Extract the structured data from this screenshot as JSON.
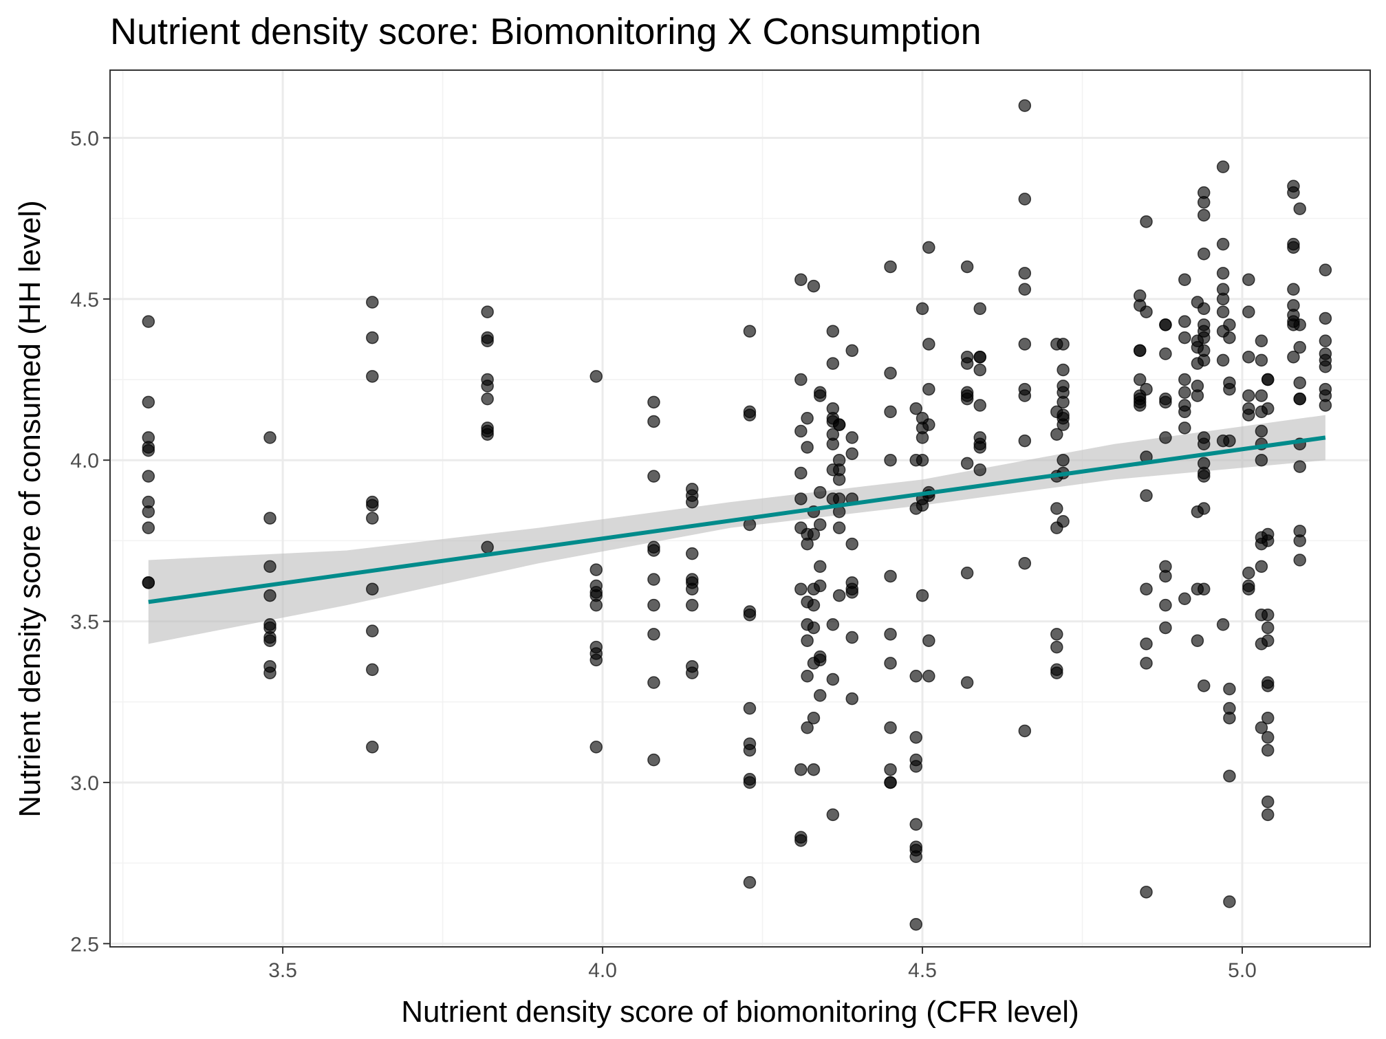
{
  "chart_data": {
    "type": "scatter",
    "title": "Nutrient density score: Biomonitoring X Consumption",
    "xlabel": "Nutrient density score of biomonitoring (CFR level)",
    "ylabel": "Nutrient density score of consumed (HH level)",
    "xlim": [
      3.23,
      5.2
    ],
    "ylim": [
      2.49,
      5.21
    ],
    "xticks": [
      3.5,
      4.0,
      4.5,
      5.0
    ],
    "xtick_labels": [
      "3.5",
      "4.0",
      "4.5",
      "5.0"
    ],
    "yticks": [
      2.5,
      3.0,
      3.5,
      4.0,
      4.5,
      5.0
    ],
    "ytick_labels": [
      "2.5",
      "3.0",
      "3.5",
      "4.0",
      "4.5",
      "5.0"
    ],
    "grid": true,
    "colors": {
      "points": "#000000",
      "trend_line": "#008b8b",
      "confidence_band": "#bfbfbf"
    },
    "trend_line": {
      "x": [
        3.29,
        5.13
      ],
      "y": [
        3.56,
        4.07
      ]
    },
    "confidence_band": {
      "x": [
        3.29,
        3.6,
        3.9,
        4.2,
        4.5,
        4.8,
        5.13
      ],
      "lower": [
        3.43,
        3.55,
        3.68,
        3.79,
        3.86,
        3.94,
        4.0
      ],
      "upper": [
        3.69,
        3.72,
        3.79,
        3.87,
        3.94,
        4.05,
        4.14
      ]
    },
    "points": [
      [
        3.29,
        4.43
      ],
      [
        3.29,
        4.18
      ],
      [
        3.29,
        4.07
      ],
      [
        3.29,
        4.04
      ],
      [
        3.29,
        4.03
      ],
      [
        3.29,
        3.95
      ],
      [
        3.29,
        3.87
      ],
      [
        3.29,
        3.84
      ],
      [
        3.29,
        3.79
      ],
      [
        3.29,
        3.62
      ],
      [
        3.29,
        3.62
      ],
      [
        3.48,
        4.07
      ],
      [
        3.48,
        3.82
      ],
      [
        3.48,
        3.67
      ],
      [
        3.48,
        3.58
      ],
      [
        3.48,
        3.49
      ],
      [
        3.48,
        3.48
      ],
      [
        3.48,
        3.45
      ],
      [
        3.48,
        3.44
      ],
      [
        3.48,
        3.36
      ],
      [
        3.48,
        3.34
      ],
      [
        3.64,
        4.49
      ],
      [
        3.64,
        4.38
      ],
      [
        3.64,
        4.26
      ],
      [
        3.64,
        3.87
      ],
      [
        3.64,
        3.86
      ],
      [
        3.64,
        3.82
      ],
      [
        3.64,
        3.6
      ],
      [
        3.64,
        3.47
      ],
      [
        3.64,
        3.35
      ],
      [
        3.64,
        3.11
      ],
      [
        3.82,
        4.46
      ],
      [
        3.82,
        4.38
      ],
      [
        3.82,
        4.37
      ],
      [
        3.82,
        4.25
      ],
      [
        3.82,
        4.23
      ],
      [
        3.82,
        4.19
      ],
      [
        3.82,
        4.1
      ],
      [
        3.82,
        4.09
      ],
      [
        3.82,
        4.08
      ],
      [
        3.82,
        3.73
      ],
      [
        3.99,
        4.26
      ],
      [
        3.99,
        3.66
      ],
      [
        3.99,
        3.61
      ],
      [
        3.99,
        3.59
      ],
      [
        3.99,
        3.58
      ],
      [
        3.99,
        3.55
      ],
      [
        3.99,
        3.42
      ],
      [
        3.99,
        3.4
      ],
      [
        3.99,
        3.38
      ],
      [
        3.99,
        3.11
      ],
      [
        4.08,
        4.18
      ],
      [
        4.08,
        4.12
      ],
      [
        4.08,
        3.95
      ],
      [
        4.08,
        3.73
      ],
      [
        4.08,
        3.72
      ],
      [
        4.08,
        3.63
      ],
      [
        4.08,
        3.55
      ],
      [
        4.08,
        3.46
      ],
      [
        4.08,
        3.31
      ],
      [
        4.08,
        3.07
      ],
      [
        4.14,
        3.91
      ],
      [
        4.14,
        3.89
      ],
      [
        4.14,
        3.87
      ],
      [
        4.14,
        3.71
      ],
      [
        4.14,
        3.63
      ],
      [
        4.14,
        3.62
      ],
      [
        4.14,
        3.6
      ],
      [
        4.14,
        3.55
      ],
      [
        4.14,
        3.36
      ],
      [
        4.14,
        3.34
      ],
      [
        4.23,
        4.4
      ],
      [
        4.23,
        4.15
      ],
      [
        4.23,
        4.14
      ],
      [
        4.23,
        3.8
      ],
      [
        4.23,
        3.53
      ],
      [
        4.23,
        3.52
      ],
      [
        4.23,
        3.23
      ],
      [
        4.23,
        3.12
      ],
      [
        4.23,
        3.1
      ],
      [
        4.23,
        3.01
      ],
      [
        4.23,
        3.0
      ],
      [
        4.23,
        2.69
      ],
      [
        4.31,
        4.56
      ],
      [
        4.31,
        4.25
      ],
      [
        4.31,
        4.09
      ],
      [
        4.31,
        3.96
      ],
      [
        4.31,
        3.88
      ],
      [
        4.31,
        3.79
      ],
      [
        4.31,
        3.6
      ],
      [
        4.31,
        3.04
      ],
      [
        4.31,
        2.83
      ],
      [
        4.31,
        2.82
      ],
      [
        4.32,
        4.13
      ],
      [
        4.32,
        4.04
      ],
      [
        4.32,
        3.77
      ],
      [
        4.32,
        3.74
      ],
      [
        4.32,
        3.56
      ],
      [
        4.32,
        3.49
      ],
      [
        4.32,
        3.44
      ],
      [
        4.32,
        3.33
      ],
      [
        4.32,
        3.17
      ],
      [
        4.33,
        4.54
      ],
      [
        4.33,
        3.84
      ],
      [
        4.33,
        3.77
      ],
      [
        4.33,
        3.6
      ],
      [
        4.33,
        3.55
      ],
      [
        4.33,
        3.48
      ],
      [
        4.33,
        3.37
      ],
      [
        4.33,
        3.2
      ],
      [
        4.33,
        3.04
      ],
      [
        4.34,
        4.21
      ],
      [
        4.34,
        4.2
      ],
      [
        4.34,
        3.9
      ],
      [
        4.34,
        3.8
      ],
      [
        4.34,
        3.67
      ],
      [
        4.34,
        3.61
      ],
      [
        4.34,
        3.39
      ],
      [
        4.34,
        3.38
      ],
      [
        4.34,
        3.27
      ],
      [
        4.36,
        4.4
      ],
      [
        4.36,
        4.3
      ],
      [
        4.36,
        4.16
      ],
      [
        4.36,
        4.13
      ],
      [
        4.36,
        4.12
      ],
      [
        4.36,
        4.08
      ],
      [
        4.36,
        4.05
      ],
      [
        4.36,
        3.97
      ],
      [
        4.36,
        3.88
      ],
      [
        4.36,
        3.49
      ],
      [
        4.36,
        3.32
      ],
      [
        4.36,
        2.9
      ],
      [
        4.37,
        4.11
      ],
      [
        4.37,
        4.11
      ],
      [
        4.37,
        4.0
      ],
      [
        4.37,
        3.97
      ],
      [
        4.37,
        3.94
      ],
      [
        4.37,
        3.88
      ],
      [
        4.37,
        3.84
      ],
      [
        4.37,
        3.79
      ],
      [
        4.37,
        3.58
      ],
      [
        4.39,
        4.34
      ],
      [
        4.39,
        4.07
      ],
      [
        4.39,
        4.02
      ],
      [
        4.39,
        3.88
      ],
      [
        4.39,
        3.74
      ],
      [
        4.39,
        3.62
      ],
      [
        4.39,
        3.6
      ],
      [
        4.39,
        3.59
      ],
      [
        4.39,
        3.45
      ],
      [
        4.39,
        3.26
      ],
      [
        4.45,
        4.6
      ],
      [
        4.45,
        4.27
      ],
      [
        4.45,
        4.15
      ],
      [
        4.45,
        4.0
      ],
      [
        4.45,
        3.64
      ],
      [
        4.45,
        3.46
      ],
      [
        4.45,
        3.37
      ],
      [
        4.45,
        3.17
      ],
      [
        4.45,
        3.04
      ],
      [
        4.45,
        3.0
      ],
      [
        4.45,
        3.0
      ],
      [
        4.49,
        4.16
      ],
      [
        4.49,
        4.0
      ],
      [
        4.49,
        3.85
      ],
      [
        4.49,
        3.33
      ],
      [
        4.49,
        3.14
      ],
      [
        4.49,
        3.07
      ],
      [
        4.49,
        3.05
      ],
      [
        4.49,
        2.87
      ],
      [
        4.49,
        2.8
      ],
      [
        4.49,
        2.79
      ],
      [
        4.49,
        2.77
      ],
      [
        4.49,
        2.56
      ],
      [
        4.5,
        4.47
      ],
      [
        4.5,
        4.13
      ],
      [
        4.5,
        4.1
      ],
      [
        4.5,
        4.07
      ],
      [
        4.5,
        4.0
      ],
      [
        4.5,
        3.88
      ],
      [
        4.5,
        3.86
      ],
      [
        4.5,
        3.58
      ],
      [
        4.51,
        4.66
      ],
      [
        4.51,
        4.36
      ],
      [
        4.51,
        4.22
      ],
      [
        4.51,
        4.11
      ],
      [
        4.51,
        3.9
      ],
      [
        4.51,
        3.89
      ],
      [
        4.51,
        3.44
      ],
      [
        4.51,
        3.33
      ],
      [
        4.57,
        4.6
      ],
      [
        4.57,
        4.32
      ],
      [
        4.57,
        4.3
      ],
      [
        4.57,
        4.21
      ],
      [
        4.57,
        4.2
      ],
      [
        4.57,
        4.19
      ],
      [
        4.57,
        3.99
      ],
      [
        4.57,
        3.65
      ],
      [
        4.57,
        3.31
      ],
      [
        4.59,
        4.47
      ],
      [
        4.59,
        4.32
      ],
      [
        4.59,
        4.32
      ],
      [
        4.59,
        4.28
      ],
      [
        4.59,
        4.17
      ],
      [
        4.59,
        4.07
      ],
      [
        4.59,
        4.05
      ],
      [
        4.59,
        4.04
      ],
      [
        4.59,
        3.97
      ],
      [
        4.66,
        5.1
      ],
      [
        4.66,
        4.81
      ],
      [
        4.66,
        4.58
      ],
      [
        4.66,
        4.53
      ],
      [
        4.66,
        4.36
      ],
      [
        4.66,
        4.22
      ],
      [
        4.66,
        4.2
      ],
      [
        4.66,
        4.06
      ],
      [
        4.66,
        3.68
      ],
      [
        4.66,
        3.16
      ],
      [
        4.71,
        4.36
      ],
      [
        4.71,
        4.15
      ],
      [
        4.71,
        4.08
      ],
      [
        4.71,
        3.95
      ],
      [
        4.71,
        3.85
      ],
      [
        4.71,
        3.79
      ],
      [
        4.71,
        3.46
      ],
      [
        4.71,
        3.42
      ],
      [
        4.71,
        3.35
      ],
      [
        4.71,
        3.34
      ],
      [
        4.72,
        4.36
      ],
      [
        4.72,
        4.28
      ],
      [
        4.72,
        4.23
      ],
      [
        4.72,
        4.21
      ],
      [
        4.72,
        4.18
      ],
      [
        4.72,
        4.14
      ],
      [
        4.72,
        4.13
      ],
      [
        4.72,
        4.11
      ],
      [
        4.72,
        4.0
      ],
      [
        4.72,
        3.96
      ],
      [
        4.72,
        3.81
      ],
      [
        4.84,
        4.51
      ],
      [
        4.84,
        4.48
      ],
      [
        4.84,
        4.34
      ],
      [
        4.84,
        4.34
      ],
      [
        4.84,
        4.25
      ],
      [
        4.84,
        4.2
      ],
      [
        4.84,
        4.19
      ],
      [
        4.84,
        4.18
      ],
      [
        4.84,
        4.17
      ],
      [
        4.85,
        4.74
      ],
      [
        4.85,
        4.46
      ],
      [
        4.85,
        4.22
      ],
      [
        4.85,
        4.01
      ],
      [
        4.85,
        3.89
      ],
      [
        4.85,
        3.6
      ],
      [
        4.85,
        3.43
      ],
      [
        4.85,
        3.37
      ],
      [
        4.85,
        2.66
      ],
      [
        4.88,
        4.42
      ],
      [
        4.88,
        4.42
      ],
      [
        4.88,
        4.33
      ],
      [
        4.88,
        4.19
      ],
      [
        4.88,
        4.18
      ],
      [
        4.88,
        4.07
      ],
      [
        4.88,
        3.67
      ],
      [
        4.88,
        3.64
      ],
      [
        4.88,
        3.55
      ],
      [
        4.88,
        3.48
      ],
      [
        4.91,
        4.56
      ],
      [
        4.91,
        4.43
      ],
      [
        4.91,
        4.38
      ],
      [
        4.91,
        4.25
      ],
      [
        4.91,
        4.21
      ],
      [
        4.91,
        4.17
      ],
      [
        4.91,
        4.15
      ],
      [
        4.91,
        4.1
      ],
      [
        4.91,
        3.57
      ],
      [
        4.93,
        4.49
      ],
      [
        4.93,
        4.37
      ],
      [
        4.93,
        4.35
      ],
      [
        4.93,
        4.3
      ],
      [
        4.93,
        4.23
      ],
      [
        4.93,
        4.2
      ],
      [
        4.93,
        3.84
      ],
      [
        4.93,
        3.6
      ],
      [
        4.93,
        3.44
      ],
      [
        4.94,
        4.83
      ],
      [
        4.94,
        4.8
      ],
      [
        4.94,
        4.76
      ],
      [
        4.94,
        4.64
      ],
      [
        4.94,
        4.47
      ],
      [
        4.94,
        4.42
      ],
      [
        4.94,
        4.4
      ],
      [
        4.94,
        4.38
      ],
      [
        4.94,
        4.34
      ],
      [
        4.94,
        4.31
      ],
      [
        4.94,
        4.07
      ],
      [
        4.94,
        4.05
      ],
      [
        4.94,
        3.99
      ],
      [
        4.94,
        3.96
      ],
      [
        4.94,
        3.95
      ],
      [
        4.94,
        3.85
      ],
      [
        4.94,
        3.6
      ],
      [
        4.94,
        3.3
      ],
      [
        4.97,
        4.91
      ],
      [
        4.97,
        4.67
      ],
      [
        4.97,
        4.58
      ],
      [
        4.97,
        4.53
      ],
      [
        4.97,
        4.5
      ],
      [
        4.97,
        4.46
      ],
      [
        4.97,
        4.4
      ],
      [
        4.97,
        4.31
      ],
      [
        4.97,
        4.06
      ],
      [
        4.97,
        3.49
      ],
      [
        4.98,
        4.42
      ],
      [
        4.98,
        4.38
      ],
      [
        4.98,
        4.24
      ],
      [
        4.98,
        4.22
      ],
      [
        4.98,
        4.06
      ],
      [
        4.98,
        3.29
      ],
      [
        4.98,
        3.23
      ],
      [
        4.98,
        3.2
      ],
      [
        4.98,
        3.02
      ],
      [
        4.98,
        2.63
      ],
      [
        5.01,
        4.56
      ],
      [
        5.01,
        4.46
      ],
      [
        5.01,
        4.32
      ],
      [
        5.01,
        4.2
      ],
      [
        5.01,
        4.16
      ],
      [
        5.01,
        4.14
      ],
      [
        5.01,
        3.65
      ],
      [
        5.01,
        3.61
      ],
      [
        5.01,
        3.6
      ],
      [
        5.03,
        4.37
      ],
      [
        5.03,
        4.31
      ],
      [
        5.03,
        4.2
      ],
      [
        5.03,
        4.15
      ],
      [
        5.03,
        4.09
      ],
      [
        5.03,
        4.05
      ],
      [
        5.03,
        4.0
      ],
      [
        5.03,
        3.76
      ],
      [
        5.03,
        3.74
      ],
      [
        5.03,
        3.67
      ],
      [
        5.03,
        3.52
      ],
      [
        5.03,
        3.43
      ],
      [
        5.03,
        3.17
      ],
      [
        5.04,
        4.25
      ],
      [
        5.04,
        4.25
      ],
      [
        5.04,
        4.16
      ],
      [
        5.04,
        3.77
      ],
      [
        5.04,
        3.75
      ],
      [
        5.04,
        3.52
      ],
      [
        5.04,
        3.48
      ],
      [
        5.04,
        3.44
      ],
      [
        5.04,
        3.31
      ],
      [
        5.04,
        3.3
      ],
      [
        5.04,
        3.2
      ],
      [
        5.04,
        3.14
      ],
      [
        5.04,
        3.1
      ],
      [
        5.04,
        2.94
      ],
      [
        5.04,
        2.9
      ],
      [
        5.08,
        4.85
      ],
      [
        5.08,
        4.83
      ],
      [
        5.08,
        4.67
      ],
      [
        5.08,
        4.66
      ],
      [
        5.08,
        4.53
      ],
      [
        5.08,
        4.48
      ],
      [
        5.08,
        4.45
      ],
      [
        5.08,
        4.43
      ],
      [
        5.08,
        4.42
      ],
      [
        5.08,
        4.32
      ],
      [
        5.09,
        4.78
      ],
      [
        5.09,
        4.42
      ],
      [
        5.09,
        4.35
      ],
      [
        5.09,
        4.24
      ],
      [
        5.09,
        4.19
      ],
      [
        5.09,
        4.19
      ],
      [
        5.09,
        4.05
      ],
      [
        5.09,
        3.98
      ],
      [
        5.09,
        3.78
      ],
      [
        5.09,
        3.75
      ],
      [
        5.09,
        3.69
      ],
      [
        5.13,
        4.59
      ],
      [
        5.13,
        4.44
      ],
      [
        5.13,
        4.37
      ],
      [
        5.13,
        4.33
      ],
      [
        5.13,
        4.31
      ],
      [
        5.13,
        4.29
      ],
      [
        5.13,
        4.22
      ],
      [
        5.13,
        4.2
      ],
      [
        5.13,
        4.17
      ]
    ]
  }
}
